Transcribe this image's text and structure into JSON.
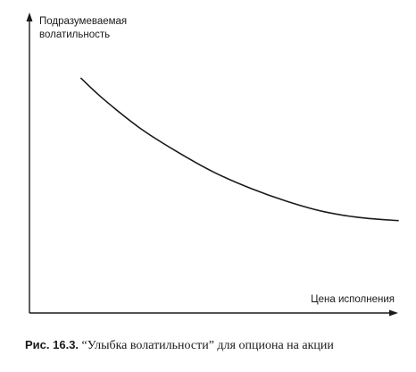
{
  "chart_data": {
    "type": "line",
    "title": "",
    "ylabel_lines": [
      "Подразумеваемая",
      "волатильность"
    ],
    "xlabel": "Цена исполнения",
    "xlim": [
      0,
      100
    ],
    "ylim": [
      0,
      100
    ],
    "grid": false,
    "legend": "none",
    "series": [
      {
        "x": [
          14,
          20,
          30,
          40,
          50,
          60,
          70,
          80,
          90,
          100
        ],
        "values": [
          80,
          73,
          63,
          55,
          48,
          42.5,
          38,
          34.5,
          32.5,
          31.5
        ]
      }
    ],
    "colors": {
      "line": "#1a1a1a",
      "axis": "#1a1a1a"
    }
  },
  "caption": {
    "label": "Рис. 16.3.",
    "text": " “Улыбка волатильности” для опциона на акции"
  }
}
